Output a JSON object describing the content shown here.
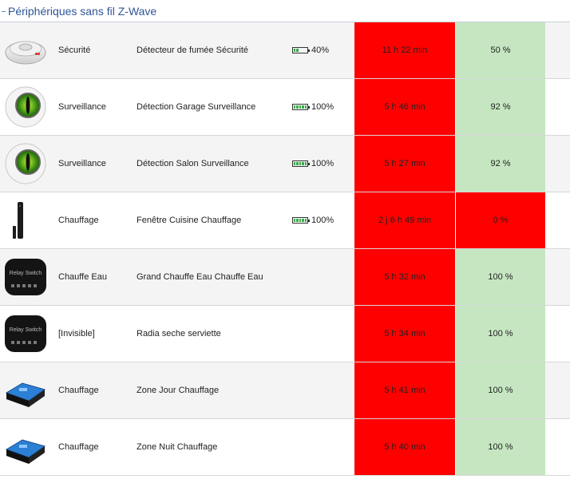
{
  "section": {
    "title": "Périphériques sans fil Z-Wave"
  },
  "colors": {
    "alert": "#ff0000",
    "ok": "#c5e6c1",
    "battery": "#3aa84a"
  },
  "devices": [
    {
      "icon": "smoke-detector-icon",
      "category": "Sécurité",
      "name": "Détecteur de fumée Sécurité",
      "battery": "40%",
      "battery_level": 0.4,
      "last_seen": "11 h 22 min",
      "level": "50 %",
      "level_state": "ok"
    },
    {
      "icon": "motion-sensor-icon",
      "category": "Surveillance",
      "name": "Détection Garage Surveillance",
      "battery": "100%",
      "battery_level": 1.0,
      "last_seen": "5 h 46 min",
      "level": "92 %",
      "level_state": "ok"
    },
    {
      "icon": "motion-sensor-icon",
      "category": "Surveillance",
      "name": "Détection Salon Surveillance",
      "battery": "100%",
      "battery_level": 1.0,
      "last_seen": "5 h 27 min",
      "level": "92 %",
      "level_state": "ok"
    },
    {
      "icon": "door-window-sensor-icon",
      "category": "Chauffage",
      "name": "Fenêtre Cuisine Chauffage",
      "battery": "100%",
      "battery_level": 1.0,
      "last_seen": "2 j 6 h 49 min",
      "level": "0 %",
      "level_state": "bad"
    },
    {
      "icon": "relay-switch-icon",
      "category": "Chauffe Eau",
      "name": "Grand Chauffe Eau Chauffe Eau",
      "battery": "",
      "battery_level": null,
      "last_seen": "5 h 32 min",
      "level": "100 %",
      "level_state": "ok"
    },
    {
      "icon": "relay-switch-icon",
      "category": "[Invisible]",
      "name": "Radia seche serviette",
      "battery": "",
      "battery_level": null,
      "last_seen": "5 h 34 min",
      "level": "100 %",
      "level_state": "ok"
    },
    {
      "icon": "pilot-wire-module-icon",
      "category": "Chauffage",
      "name": "Zone Jour Chauffage",
      "battery": "",
      "battery_level": null,
      "last_seen": "5 h 41 min",
      "level": "100 %",
      "level_state": "ok"
    },
    {
      "icon": "pilot-wire-module-icon",
      "category": "Chauffage",
      "name": "Zone Nuit Chauffage",
      "battery": "",
      "battery_level": null,
      "last_seen": "5 h 40 min",
      "level": "100 %",
      "level_state": "ok"
    }
  ]
}
